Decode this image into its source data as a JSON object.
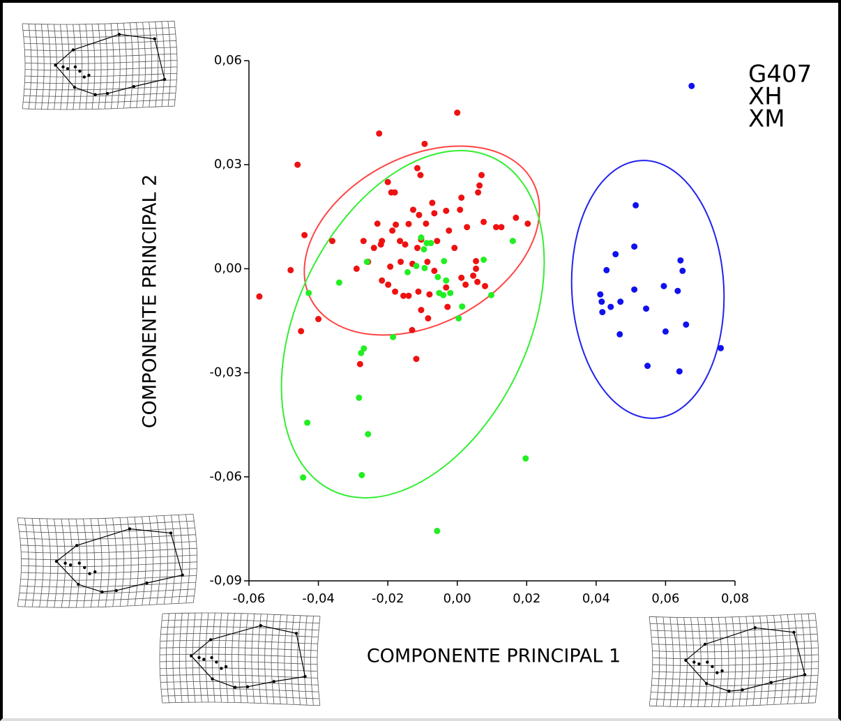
{
  "chart_data": {
    "type": "scatter",
    "x_label": "COMPONENTE PRINCIPAL 1",
    "y_label": "COMPONENTE PRINCIPAL 2",
    "xlim": [
      -0.06,
      0.08
    ],
    "ylim": [
      -0.09,
      0.06
    ],
    "xticks": [
      {
        "value": -0.06,
        "label": "-0,06"
      },
      {
        "value": -0.04,
        "label": "-0,04"
      },
      {
        "value": -0.02,
        "label": "-0,02"
      },
      {
        "value": 0,
        "label": "0,00"
      },
      {
        "value": 0.02,
        "label": "0,02"
      },
      {
        "value": 0.04,
        "label": "0,04"
      },
      {
        "value": 0.06,
        "label": "0,06"
      },
      {
        "value": 0.08,
        "label": "0,08"
      }
    ],
    "yticks": [
      {
        "value": 0.06,
        "label": "0,06"
      },
      {
        "value": 0.03,
        "label": "0,03"
      },
      {
        "value": 0,
        "label": "0,00"
      },
      {
        "value": -0.03,
        "label": "-0,03"
      },
      {
        "value": -0.06,
        "label": "-0,06"
      },
      {
        "value": -0.09,
        "label": "-0,09"
      }
    ],
    "series": [
      {
        "name": "G407",
        "color": "#ee1111",
        "x": [
          -0.057,
          -0.046,
          -0.044,
          -0.048,
          -0.045,
          -0.04,
          -0.036,
          -0.0225,
          0.0,
          -0.0094,
          -0.0115,
          -0.0106,
          -0.02,
          -0.019,
          -0.018,
          0.007,
          0.0064,
          0.006,
          0.0012,
          -0.0032,
          0.0008,
          -0.0072,
          -0.0127,
          -0.011,
          -0.0066,
          -0.009,
          -0.0177,
          -0.023,
          -0.0187,
          -0.014,
          0.0076,
          0.0112,
          0.0127,
          0.0169,
          0.0203,
          0.0028,
          -0.0024,
          -0.027,
          -0.0217,
          -0.024,
          -0.022,
          -0.0165,
          -0.015,
          -0.0104,
          -0.0058,
          -0.0008,
          -0.0115,
          -0.029,
          -0.0257,
          -0.0193,
          -0.0163,
          -0.0129,
          -0.0086,
          -0.0217,
          -0.0199,
          -0.0179,
          -0.0155,
          -0.014,
          -0.008,
          -0.0112,
          -0.0032,
          -0.0028,
          0.0012,
          0.0054,
          0.0054,
          0.0046,
          0.0058,
          0.0024,
          0.008,
          -0.0104,
          -0.013,
          -0.0084,
          -0.0118,
          -0.028,
          -0.0066
        ],
        "values": [
          -0.008,
          0.03,
          0.0097,
          -0.0004,
          -0.018,
          -0.0145,
          0.008,
          0.039,
          0.045,
          0.036,
          0.029,
          0.027,
          0.025,
          0.022,
          0.022,
          0.027,
          0.024,
          0.022,
          0.0205,
          0.0167,
          0.017,
          0.019,
          0.017,
          0.0155,
          0.016,
          0.013,
          0.0127,
          0.013,
          0.011,
          0.0129,
          0.0135,
          0.012,
          0.012,
          0.0147,
          0.013,
          0.012,
          0.011,
          0.008,
          0.008,
          0.006,
          0.007,
          0.008,
          0.007,
          0.0084,
          0.008,
          0.006,
          0.006,
          0.0,
          0.002,
          0.0006,
          0.002,
          0.0014,
          0.002,
          -0.0034,
          -0.0046,
          -0.0066,
          -0.0078,
          -0.0078,
          -0.0074,
          -0.0066,
          -0.0054,
          -0.011,
          -0.0026,
          0.0022,
          0.0,
          -0.002,
          -0.0038,
          -0.0046,
          -0.005,
          -0.0119,
          -0.0177,
          -0.0143,
          -0.026,
          -0.0275,
          -0.0006
        ]
      },
      {
        "name": "XH",
        "color": "#22ee22",
        "x": [
          -0.0428,
          -0.034,
          -0.026,
          -0.0277,
          -0.0269,
          -0.0185,
          -0.0104,
          -0.0088,
          -0.0076,
          -0.0096,
          -0.0118,
          -0.0094,
          -0.0143,
          -0.0038,
          -0.0056,
          -0.0032,
          -0.0052,
          -0.004,
          -0.002,
          0.0014,
          0.0004,
          0.0098,
          0.0076,
          0.016,
          -0.0283,
          -0.0432,
          -0.0257,
          -0.0275,
          -0.0444,
          0.0197,
          -0.0058
        ],
        "values": [
          -0.007,
          -0.004,
          0.002,
          -0.0243,
          -0.023,
          -0.0197,
          0.009,
          0.0074,
          0.0074,
          0.0056,
          0.0008,
          0.0002,
          -0.001,
          0.0022,
          -0.0024,
          -0.0034,
          -0.007,
          -0.0076,
          -0.007,
          -0.0109,
          -0.0143,
          -0.0076,
          0.0026,
          0.008,
          -0.0372,
          -0.0444,
          -0.0477,
          -0.0595,
          -0.0602,
          -0.0547,
          -0.0756
        ]
      },
      {
        "name": "XM",
        "color": "#1111ee",
        "x": [
          0.0675,
          0.0514,
          0.051,
          0.0456,
          0.043,
          0.0643,
          0.0649,
          0.0595,
          0.051,
          0.0635,
          0.0412,
          0.0416,
          0.0442,
          0.047,
          0.0418,
          0.0544,
          0.0659,
          0.06,
          0.0468,
          0.0759,
          0.0548,
          0.064
        ],
        "values": [
          0.0527,
          0.0183,
          0.0064,
          0.0042,
          -0.0004,
          0.0024,
          -0.0006,
          -0.005,
          -0.006,
          -0.0064,
          -0.0074,
          -0.0095,
          -0.011,
          -0.0095,
          -0.0125,
          -0.0115,
          -0.0161,
          -0.0181,
          -0.0189,
          -0.0229,
          -0.028,
          -0.0296
        ]
      }
    ]
  }
}
